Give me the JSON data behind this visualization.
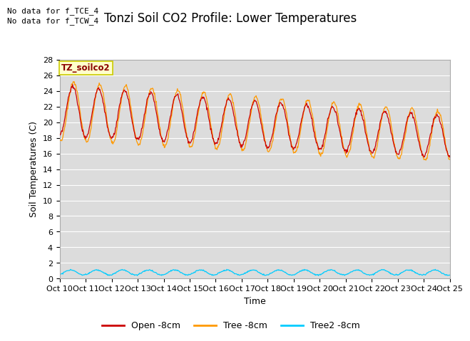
{
  "title": "Tonzi Soil CO2 Profile: Lower Temperatures",
  "ylabel": "Soil Temperatures (C)",
  "xlabel": "Time",
  "top_annotation_line1": "No data for f_TCE_4",
  "top_annotation_line2": "No data for f_TCW_4",
  "box_label": "TZ_soilco2",
  "x_tick_labels": [
    "Oct 10",
    "Oct 11",
    "Oct 12",
    "Oct 13",
    "Oct 14",
    "Oct 15",
    "Oct 16",
    "Oct 17",
    "Oct 18",
    "Oct 19",
    "Oct 20",
    "Oct 21",
    "Oct 22",
    "Oct 23",
    "Oct 24",
    "Oct 25"
  ],
  "ylim": [
    0,
    28
  ],
  "yticks": [
    0,
    2,
    4,
    6,
    8,
    10,
    12,
    14,
    16,
    18,
    20,
    22,
    24,
    26,
    28
  ],
  "color_open": "#cc0000",
  "color_tree": "#ff9900",
  "color_tree2": "#00ccff",
  "bg_color": "#dcdcdc",
  "grid_color": "#c0c0c0",
  "legend_labels": [
    "Open -8cm",
    "Tree -8cm",
    "Tree2 -8cm"
  ],
  "title_fontsize": 12,
  "axis_fontsize": 9,
  "tick_fontsize": 8
}
